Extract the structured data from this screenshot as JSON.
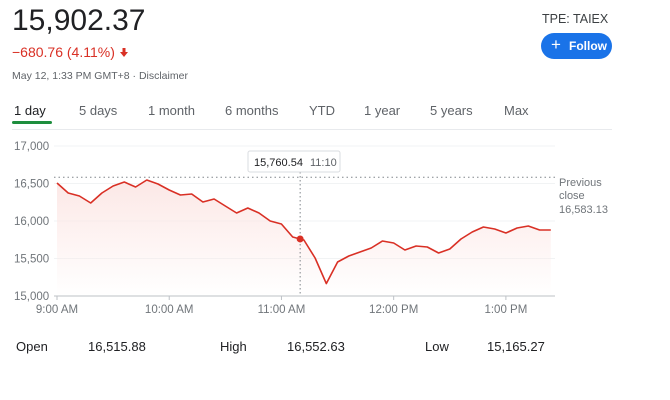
{
  "header": {
    "price": "15,902.37",
    "change": "−680.76 (4.11%)",
    "timestamp": "May 12, 1:33 PM GMT+8",
    "disclaimer": "Disclaimer",
    "ticker": "TPE: TAIEX",
    "follow": "Follow"
  },
  "tabs": [
    "1 day",
    "5 days",
    "1 month",
    "6 months",
    "YTD",
    "1 year",
    "5 years",
    "Max"
  ],
  "chart_data": {
    "type": "line",
    "color": "#d93025",
    "x": [
      9.0,
      9.1,
      9.2,
      9.3,
      9.4,
      9.5,
      9.6,
      9.7,
      9.8,
      9.9,
      10.0,
      10.1,
      10.2,
      10.3,
      10.4,
      10.5,
      10.6,
      10.7,
      10.8,
      10.9,
      11.0,
      11.1,
      11.2,
      11.3,
      11.4,
      11.5,
      11.6,
      11.7,
      11.8,
      11.9,
      12.0,
      12.1,
      12.2,
      12.3,
      12.4,
      12.5,
      12.6,
      12.7,
      12.8,
      12.9,
      13.0,
      13.1,
      13.2,
      13.3,
      13.4
    ],
    "values": [
      16507,
      16373,
      16333,
      16240,
      16373,
      16467,
      16520,
      16453,
      16547,
      16493,
      16413,
      16347,
      16360,
      16253,
      16293,
      16200,
      16107,
      16173,
      16107,
      16000,
      15960,
      15787,
      15747,
      15507,
      15165,
      15453,
      15533,
      15587,
      15640,
      15733,
      15707,
      15613,
      15667,
      15653,
      15573,
      15627,
      15760,
      15853,
      15920,
      15893,
      15840,
      15907,
      15933,
      15880,
      15880
    ],
    "xlim": [
      9,
      13.5
    ],
    "xticks": [
      {
        "value": 9,
        "label": "9:00 AM"
      },
      {
        "value": 10,
        "label": "10:00 AM"
      },
      {
        "value": 11,
        "label": "11:00 AM"
      },
      {
        "value": 12,
        "label": "12:00 PM"
      },
      {
        "value": 13,
        "label": "1:00 PM"
      }
    ],
    "ylim": [
      15000,
      17000
    ],
    "yticks": [
      {
        "value": 15000,
        "label": "15,000"
      },
      {
        "value": 15500,
        "label": "15,500"
      },
      {
        "value": 16000,
        "label": "16,000"
      },
      {
        "value": 16500,
        "label": "16,500"
      },
      {
        "value": 17000,
        "label": "17,000"
      }
    ],
    "grid": true,
    "previous_close": {
      "label": "Previous close",
      "value": 16583.13,
      "value_label": "16,583.13"
    },
    "tooltip": {
      "value": 15760.54,
      "value_label": "15,760.54",
      "time": "11:10"
    }
  },
  "stats": [
    [
      "Open",
      "16,515.88"
    ],
    [
      "High",
      "16,552.63"
    ],
    [
      "Low",
      "15,165.27"
    ]
  ]
}
